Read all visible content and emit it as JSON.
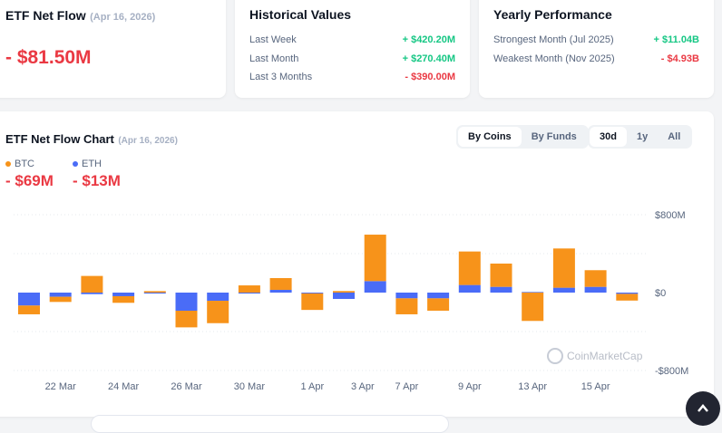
{
  "net_flow": {
    "title": "ETF Net Flow",
    "date": "(Apr 16, 2026)",
    "value": "- $81.50M"
  },
  "historical": {
    "title": "Historical Values",
    "rows": [
      {
        "label": "Last Week",
        "value": "+ $420.20M",
        "sign": "pos"
      },
      {
        "label": "Last Month",
        "value": "+ $270.40M",
        "sign": "pos"
      },
      {
        "label": "Last 3 Months",
        "value": "- $390.00M",
        "sign": "neg"
      }
    ]
  },
  "yearly": {
    "title": "Yearly Performance",
    "rows": [
      {
        "label": "Strongest Month (Jul 2025)",
        "value": "+ $11.04B",
        "sign": "pos"
      },
      {
        "label": "Weakest Month (Nov 2025)",
        "value": "- $4.93B",
        "sign": "neg"
      }
    ]
  },
  "chart_card": {
    "title": "ETF Net Flow Chart",
    "date": "(Apr 16, 2026)",
    "group_tabs": [
      "By Coins",
      "By Funds"
    ],
    "group_selected": "By Coins",
    "range_tabs": [
      "30d",
      "1y",
      "All"
    ],
    "range_selected": "30d",
    "legend": [
      {
        "name": "BTC",
        "value": "- $69M",
        "color": "#f7931a"
      },
      {
        "name": "ETH",
        "value": "- $13M",
        "color": "#4a6cf7"
      }
    ],
    "watermark": "CoinMarketCap"
  },
  "chart_data": {
    "type": "bar",
    "stacked": true,
    "unit": "USD millions",
    "ylim": [
      -800,
      800
    ],
    "yticks": [
      "$800M",
      "$0",
      "-$800M"
    ],
    "ytick_values": [
      800,
      0,
      -800
    ],
    "grid": true,
    "xtick_labels": [
      {
        "bar": 1,
        "label": "22 Mar"
      },
      {
        "bar": 3,
        "label": "24 Mar"
      },
      {
        "bar": 5,
        "label": "26 Mar"
      },
      {
        "bar": 7,
        "label": "30 Mar"
      },
      {
        "bar": 9,
        "label": "1 Apr"
      },
      {
        "bar": 10.6,
        "label": "3 Apr"
      },
      {
        "bar": 12,
        "label": "7 Apr"
      },
      {
        "bar": 14,
        "label": "9 Apr"
      },
      {
        "bar": 16,
        "label": "13 Apr"
      },
      {
        "bar": 18,
        "label": "15 Apr"
      }
    ],
    "series": [
      {
        "name": "BTC",
        "color": "#f7931a",
        "values": [
          -90,
          -53,
          171,
          -68,
          15,
          -171,
          -230,
          74,
          121,
          -170,
          16,
          477,
          -164,
          -127,
          344,
          239,
          -291,
          403,
          171,
          -69
        ]
      },
      {
        "name": "ETH",
        "color": "#4a6cf7",
        "values": [
          -133,
          -43,
          -16,
          -37,
          -5,
          -186,
          -84,
          -3,
          28,
          -8,
          -65,
          118,
          -59,
          -59,
          78,
          59,
          6,
          50,
          59,
          -13
        ]
      }
    ]
  },
  "scroll_top_icon": "chevron-up-icon"
}
